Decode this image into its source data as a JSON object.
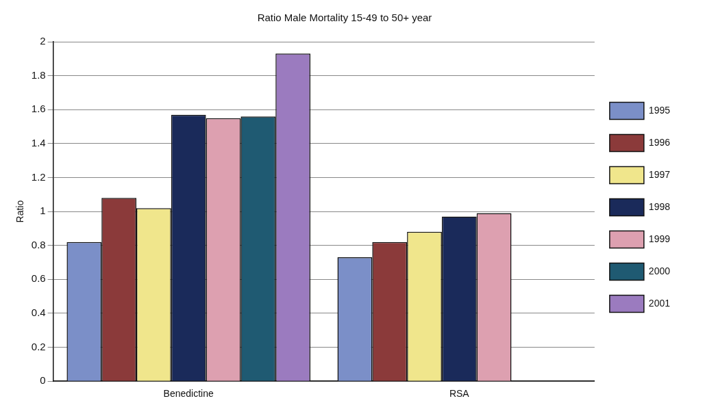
{
  "chart_data": {
    "type": "bar",
    "title": "Ratio Male Mortality 15-49 to 50+ year",
    "ylabel": "Ratio",
    "categories": [
      "Benedictine",
      "RSA"
    ],
    "series": [
      {
        "name": "1995",
        "color": "#7b8fc8",
        "values": [
          0.82,
          0.73
        ]
      },
      {
        "name": "1996",
        "color": "#8b3a3a",
        "values": [
          1.08,
          0.82
        ]
      },
      {
        "name": "1997",
        "color": "#f0e68c",
        "values": [
          1.02,
          0.88
        ]
      },
      {
        "name": "1998",
        "color": "#1a2a5a",
        "values": [
          1.57,
          0.97
        ]
      },
      {
        "name": "1999",
        "color": "#dda0b0",
        "values": [
          1.55,
          0.99
        ]
      },
      {
        "name": "2000",
        "color": "#1f5a72",
        "values": [
          1.56,
          null
        ]
      },
      {
        "name": "2001",
        "color": "#9b7bbf",
        "values": [
          1.93,
          null
        ]
      }
    ],
    "ylim": [
      0,
      2
    ],
    "yticks": [
      0,
      0.2,
      0.4,
      0.6,
      0.8,
      1,
      1.2,
      1.4,
      1.6,
      1.8,
      2
    ],
    "grid": "y",
    "legend": "right"
  }
}
